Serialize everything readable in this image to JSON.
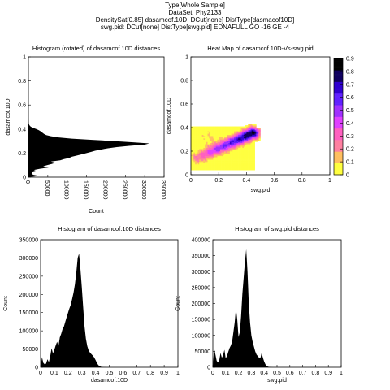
{
  "header": {
    "line1": "Type[Whole Sample]",
    "line2": "DataSet: Phy2133",
    "line3": "DensitySat[0.85] dasamcof.10D: DCut[none] DistType[dasmacof10D]",
    "line4": "swg.pid: DCut[none] DistType[swg.pid] EDNAFULL GO -16 GE -4"
  },
  "chart_data": [
    {
      "type": "area",
      "orientation": "horizontal",
      "title": "Histogram (rotated) of dasamcof.10D distances",
      "xlabel": "Count",
      "ylabel": "dasamcof.10D",
      "xlim": [
        0,
        350000
      ],
      "ylim": [
        0,
        1
      ],
      "xticks": [
        "0",
        "50000",
        "100000",
        "150000",
        "200000",
        "250000",
        "300000",
        "350000"
      ],
      "yticks": [
        "0",
        "0.2",
        "0.4",
        "0.6",
        "0.8",
        "1"
      ],
      "color": "#000000",
      "y": [
        0,
        0.01,
        0.02,
        0.03,
        0.04,
        0.05,
        0.06,
        0.07,
        0.08,
        0.09,
        0.1,
        0.11,
        0.12,
        0.13,
        0.14,
        0.15,
        0.16,
        0.17,
        0.18,
        0.19,
        0.2,
        0.21,
        0.22,
        0.23,
        0.24,
        0.25,
        0.26,
        0.27,
        0.28,
        0.29,
        0.3,
        0.31,
        0.32,
        0.33,
        0.34,
        0.35,
        0.36,
        0.37,
        0.38,
        0.39,
        0.4,
        0.41,
        0.42,
        0.43,
        0.44,
        0.45,
        0.46,
        0.47,
        0.48,
        0.49,
        0.5
      ],
      "x": [
        0,
        28000,
        12000,
        8000,
        10000,
        22000,
        14000,
        30000,
        52000,
        38000,
        48000,
        60000,
        70000,
        58000,
        82000,
        92000,
        105000,
        112000,
        125000,
        138000,
        150000,
        162000,
        172000,
        188000,
        205000,
        228000,
        260000,
        300000,
        312000,
        270000,
        220000,
        165000,
        112000,
        78000,
        58000,
        46000,
        40000,
        36000,
        32000,
        27000,
        20000,
        12000,
        6000,
        3000,
        1500,
        800,
        400,
        200,
        100,
        50,
        0
      ]
    },
    {
      "type": "heatmap",
      "title": "Heat Map of dasamcof.10D-Vs-swg.pid",
      "xlabel": "swg.pid",
      "ylabel": "dasamcof.10D",
      "xlim": [
        0,
        1
      ],
      "ylim": [
        0,
        1
      ],
      "xticks": [
        "0",
        "0.2",
        "0.4",
        "0.6",
        "0.8",
        "1"
      ],
      "yticks": [
        "0",
        "0.2",
        "0.4",
        "0.6",
        "0.8",
        "1"
      ],
      "colorbar": {
        "min": 0,
        "max": 0.9,
        "ticks": [
          "0",
          "0.1",
          "0.2",
          "0.3",
          "0.4",
          "0.5",
          "0.6",
          "0.7",
          "0.8",
          "0.9"
        ],
        "colors": [
          "#ffff40",
          "#ffbf60",
          "#ff80a0",
          "#ff60c0",
          "#e040ff",
          "#a030ff",
          "#6020ff",
          "#3000d0",
          "#100060",
          "#000000"
        ]
      },
      "density_model": {
        "ridge": {
          "x0": 0.05,
          "y0": 0.14,
          "x1": 0.44,
          "y1": 0.35
        },
        "spread_x": [
          0,
          0.48
        ],
        "spread_y": [
          0.02,
          0.44
        ]
      }
    },
    {
      "type": "area",
      "title": "Histogram of dasamcof.10D distances",
      "xlabel": "dasamcof.10D",
      "ylabel": "Count",
      "xlim": [
        0,
        1
      ],
      "ylim": [
        0,
        350000
      ],
      "xticks": [
        "0",
        "0.1",
        "0.2",
        "0.3",
        "0.4",
        "0.5",
        "0.6",
        "0.7",
        "0.8",
        "0.9",
        "1"
      ],
      "yticks": [
        "0",
        "50000",
        "100000",
        "150000",
        "200000",
        "250000",
        "300000",
        "350000"
      ],
      "color": "#000000",
      "x": [
        0,
        0.01,
        0.02,
        0.03,
        0.04,
        0.05,
        0.06,
        0.07,
        0.08,
        0.09,
        0.1,
        0.11,
        0.12,
        0.13,
        0.14,
        0.15,
        0.16,
        0.17,
        0.18,
        0.19,
        0.2,
        0.21,
        0.22,
        0.23,
        0.24,
        0.25,
        0.26,
        0.27,
        0.28,
        0.29,
        0.3,
        0.31,
        0.32,
        0.33,
        0.34,
        0.35,
        0.36,
        0.37,
        0.38,
        0.39,
        0.4,
        0.41,
        0.42,
        0.43,
        0.44,
        0.45,
        0.46,
        0.47,
        0.48,
        0.49,
        0.5
      ],
      "y": [
        0,
        28000,
        12000,
        8000,
        10000,
        22000,
        14000,
        30000,
        52000,
        38000,
        48000,
        60000,
        70000,
        58000,
        82000,
        92000,
        105000,
        112000,
        125000,
        138000,
        150000,
        162000,
        172000,
        188000,
        205000,
        228000,
        260000,
        300000,
        312000,
        270000,
        220000,
        165000,
        112000,
        78000,
        58000,
        46000,
        40000,
        36000,
        32000,
        27000,
        20000,
        12000,
        6000,
        3000,
        1500,
        800,
        400,
        200,
        100,
        50,
        0
      ]
    },
    {
      "type": "area",
      "title": "Histogram of swg.pid distances",
      "xlabel": "swg.pid",
      "ylabel": "Count",
      "xlim": [
        0,
        1
      ],
      "ylim": [
        0,
        400000
      ],
      "xticks": [
        "0",
        "0.1",
        "0.2",
        "0.3",
        "0.4",
        "0.5",
        "0.6",
        "0.7",
        "0.8",
        "0.9",
        "1"
      ],
      "yticks": [
        "0",
        "50000",
        "100000",
        "150000",
        "200000",
        "250000",
        "300000",
        "350000",
        "400000"
      ],
      "color": "#000000",
      "x": [
        0,
        0.01,
        0.02,
        0.03,
        0.04,
        0.05,
        0.06,
        0.07,
        0.08,
        0.09,
        0.1,
        0.11,
        0.12,
        0.13,
        0.14,
        0.15,
        0.16,
        0.17,
        0.18,
        0.19,
        0.2,
        0.21,
        0.22,
        0.23,
        0.24,
        0.25,
        0.26,
        0.27,
        0.28,
        0.29,
        0.3,
        0.31,
        0.32,
        0.33,
        0.34,
        0.35,
        0.36,
        0.37,
        0.38,
        0.39,
        0.4,
        0.41,
        0.42,
        0.43,
        0.44,
        0.45,
        0.46,
        0.47,
        0.48,
        0.49,
        0.5
      ],
      "y": [
        0,
        60000,
        40000,
        20000,
        15000,
        22000,
        45000,
        30000,
        38000,
        55000,
        28000,
        35000,
        48000,
        60000,
        68000,
        80000,
        110000,
        140000,
        185000,
        150000,
        95000,
        110000,
        160000,
        230000,
        280000,
        330000,
        370000,
        300000,
        200000,
        140000,
        100000,
        80000,
        65000,
        50000,
        40000,
        35000,
        30000,
        28000,
        45000,
        30000,
        18000,
        9000,
        4000,
        2000,
        1000,
        500,
        200,
        100,
        50,
        20,
        0
      ]
    }
  ]
}
